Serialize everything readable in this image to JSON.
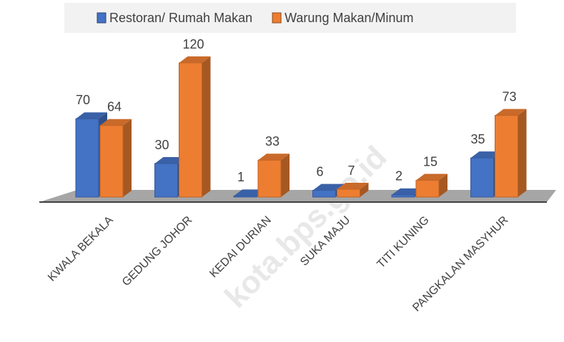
{
  "chart_data": {
    "type": "bar3d",
    "categories": [
      "KWALA BEKALA",
      "GEDUNG JOHOR",
      "KEDAI DURIAN",
      "SUKA MAJU",
      "TITI KUNING",
      "PANGKALAN MASYHUR"
    ],
    "series": [
      {
        "name": "Restoran/ Rumah Makan",
        "color": "#4472c4",
        "values": [
          70,
          30,
          1,
          6,
          2,
          35
        ]
      },
      {
        "name": "Warung Makan/Minum",
        "color": "#ed7d31",
        "values": [
          64,
          120,
          33,
          7,
          15,
          73
        ]
      }
    ],
    "legend": "top",
    "watermark": "kota.bps.go.id"
  }
}
